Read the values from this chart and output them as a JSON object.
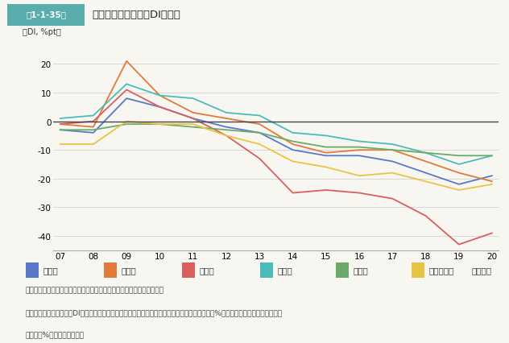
{
  "title": "業種別従業員過不足DIの推移",
  "title_prefix": "第1-1-35図",
  "ylabel": "（DI, %pt）",
  "xlabel_suffix": "（年期）",
  "source_line1": "資料：中小企業庁・（独）中小企業基盤整備機構「中小企業景況調査」",
  "source_line2": "（注）従業員数過不足数DIとは、従業員の今期の状況について、「過剰」と答えた企業の割合（%）から、「不足」と答えた企業",
  "source_line3": "の割合（%）を引いたもの。",
  "years": [
    "07",
    "08",
    "09",
    "10",
    "11",
    "12",
    "13",
    "14",
    "15",
    "16",
    "17",
    "18",
    "19",
    "20"
  ],
  "series": {
    "全産業": {
      "color": "#5a78c8",
      "data": [
        -3,
        -4,
        8,
        5,
        1,
        -2,
        -4,
        -10,
        -12,
        -12,
        -14,
        -18,
        -22,
        -19
      ]
    },
    "製造業": {
      "color": "#e07b39",
      "data": [
        -1,
        -2,
        21,
        9,
        3,
        1,
        -1,
        -8,
        -11,
        -10,
        -10,
        -14,
        -18,
        -21
      ]
    },
    "建設業": {
      "color": "#d95f5f",
      "data": [
        -1,
        0,
        11,
        5,
        1,
        -5,
        -13,
        -25,
        -24,
        -25,
        -27,
        -33,
        -43,
        -39
      ]
    },
    "卸売業": {
      "color": "#4bbcbc",
      "data": [
        1,
        2,
        13,
        9,
        8,
        3,
        2,
        -4,
        -5,
        -7,
        -8,
        -11,
        -15,
        -12
      ]
    },
    "小売業": {
      "color": "#6aab6a",
      "data": [
        -3,
        -3,
        -1,
        -1,
        -2,
        -3,
        -4,
        -7,
        -9,
        -9,
        -10,
        -11,
        -12,
        -12
      ]
    },
    "サービス業": {
      "color": "#e8c444",
      "data": [
        -8,
        -8,
        0,
        -1,
        -1,
        -5,
        -8,
        -14,
        -16,
        -19,
        -18,
        -21,
        -24,
        -22
      ]
    }
  },
  "ylim": [
    -45,
    27
  ],
  "yticks": [
    -40,
    -30,
    -20,
    -10,
    0,
    10,
    20
  ],
  "bg_color": "#f8f6f0",
  "plot_bg": "#f8f6f0",
  "header_color": "#5aadad",
  "zero_line_color": "#444444"
}
